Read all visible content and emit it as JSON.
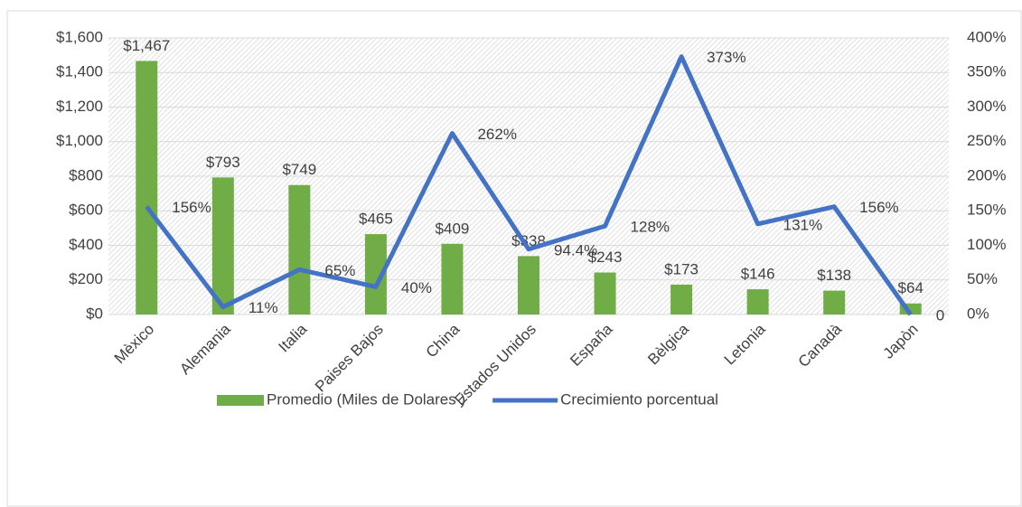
{
  "chart_data": {
    "type": "bar-line",
    "categories": [
      "Mèxico",
      "Alemania",
      "Italia",
      "Paises Bajos",
      "China",
      "Estados Unidos",
      "España",
      "Bèlgica",
      "Letonia",
      "Canadà",
      "Japòn"
    ],
    "series": [
      {
        "name": "Promedio (Miles de Dolares )",
        "type": "bar",
        "color": "#70ad47",
        "values": [
          1467,
          793,
          749,
          465,
          409,
          338,
          243,
          173,
          146,
          138,
          64
        ],
        "value_labels": [
          "$1,467",
          "$793",
          "$749",
          "$465",
          "$409",
          "$338",
          "$243",
          "$173",
          "$146",
          "$138",
          "$64"
        ]
      },
      {
        "name": "Crecimiento porcentual",
        "type": "line",
        "axis": "y2",
        "color": "#4472c4",
        "values": [
          156,
          11,
          65,
          40,
          262,
          94.4,
          128,
          373,
          131,
          156,
          0
        ],
        "value_labels": [
          "156%",
          "11%",
          "65%",
          "40%",
          "262%",
          "94.4%",
          "128%",
          "373%",
          "131%",
          "156%",
          "0"
        ]
      }
    ],
    "ylim": [
      0,
      1600
    ],
    "yticks": [
      {
        "value": 0,
        "label": "$0"
      },
      {
        "value": 200,
        "label": "$200"
      },
      {
        "value": 400,
        "label": "$400"
      },
      {
        "value": 600,
        "label": "$600"
      },
      {
        "value": 800,
        "label": "$800"
      },
      {
        "value": 1000,
        "label": "$1,000"
      },
      {
        "value": 1200,
        "label": "$1,200"
      },
      {
        "value": 1400,
        "label": "$1,400"
      },
      {
        "value": 1600,
        "label": "$1,600"
      }
    ],
    "y2lim": [
      0,
      400
    ],
    "y2ticks": [
      {
        "value": 0,
        "label": "0%"
      },
      {
        "value": 50,
        "label": "50%"
      },
      {
        "value": 100,
        "label": "100%"
      },
      {
        "value": 150,
        "label": "150%"
      },
      {
        "value": 200,
        "label": "200%"
      },
      {
        "value": 250,
        "label": "250%"
      },
      {
        "value": 300,
        "label": "300%"
      },
      {
        "value": 350,
        "label": "350%"
      },
      {
        "value": 400,
        "label": "400%"
      }
    ],
    "grid": true,
    "legend": "bottom"
  }
}
